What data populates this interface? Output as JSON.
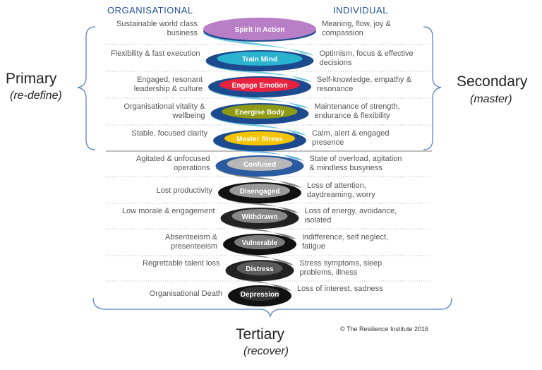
{
  "headers": {
    "left": "ORGANISATIONAL",
    "right": "INDIVIDUAL"
  },
  "groups": {
    "primary": {
      "title": "Primary",
      "subtitle": "(re-define)"
    },
    "secondary": {
      "title": "Secondary",
      "subtitle": "(master)"
    },
    "tertiary": {
      "title": "Tertiary",
      "subtitle": "(recover)"
    }
  },
  "levels": [
    {
      "label": "Spirit in Action",
      "organisational": "Sustainable world class business",
      "individual": "Meaning, flow, joy & compassion",
      "color": "#b87fc6",
      "ring": "#1d4a8f"
    },
    {
      "label": "Train Mind",
      "organisational": "Flexibility & fast execution",
      "individual": "Optimism, focus & effective decisions",
      "color": "#2ab3cf",
      "ring": "#1d4a8f"
    },
    {
      "label": "Engage Emotion",
      "organisational": "Engaged, resonant leadership & culture",
      "individual": "Self-knowledge, empathy & resonance",
      "color": "#e8213e",
      "ring": "#1d4a8f"
    },
    {
      "label": "Energise Body",
      "organisational": "Organisational vitality & wellbeing",
      "individual": "Maintenance of strength, endurance & flexibility",
      "color": "#8f9a14",
      "ring": "#1d4a8f"
    },
    {
      "label": "Master Stress",
      "organisational": "Stable, focused clarity",
      "individual": "Calm, alert & engaged presence",
      "color": "#f4c400",
      "ring": "#1d4a8f"
    },
    {
      "label": "Confused",
      "organisational": "Agitated & unfocused operations",
      "individual": "State of overload, agitation & mindless busyness",
      "color": "#b8b8b8",
      "ring": "#2a5aa0"
    },
    {
      "label": "Disengaged",
      "organisational": "Lost productivity",
      "individual": "Loss of attention, daydreaming, worry",
      "color": "#9a9a9a",
      "ring": "#111111"
    },
    {
      "label": "Withdrawn",
      "organisational": "Low morale & engagement",
      "individual": "Loss of energy, avoidance, isolated",
      "color": "#888888",
      "ring": "#222222"
    },
    {
      "label": "Vulnerable",
      "organisational": "Absenteeism & presenteeism",
      "individual": "Indifference, self neglect, fatigue",
      "color": "#7a7a7a",
      "ring": "#111111"
    },
    {
      "label": "Distress",
      "organisational": "Regrettable talent loss",
      "individual": "Stress symptoms, sleep problems, illness",
      "color": "#5a5a5a",
      "ring": "#222222"
    },
    {
      "label": "Depression",
      "organisational": "Organisational Death",
      "individual": "Loss of interest, sadness",
      "color": "#333333",
      "ring": "#111111"
    }
  ],
  "copyright": "© The Resilience Institute 2016"
}
